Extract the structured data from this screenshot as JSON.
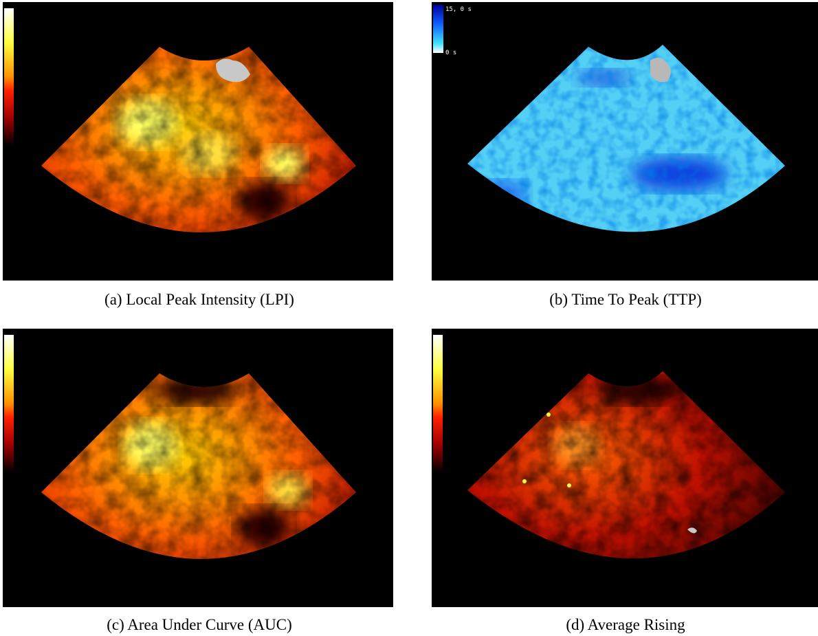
{
  "panels": [
    {
      "caption": "(a) Local Peak Intensity (LPI)"
    },
    {
      "caption": "(b) Time To Peak (TTP)",
      "colorbar": {
        "max_label": "15, 0 s",
        "min_label": "0 s"
      }
    },
    {
      "caption": "(c) Area Under Curve (AUC)"
    },
    {
      "caption": "(d) Average Rising"
    }
  ]
}
